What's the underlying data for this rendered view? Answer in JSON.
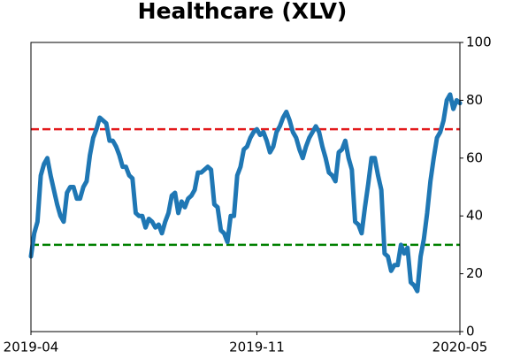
{
  "chart_data": {
    "type": "line",
    "title": "Healthcare (XLV)",
    "series": [
      {
        "color": "#1f77b4",
        "values": [
          26,
          34,
          38,
          54,
          58,
          60,
          54,
          49,
          44,
          40,
          38,
          48,
          50,
          50,
          46,
          46,
          50,
          52,
          61,
          67,
          70,
          74,
          73,
          72,
          66,
          66,
          64,
          61,
          57,
          57,
          54,
          53,
          41,
          40,
          40,
          36,
          39,
          38,
          36,
          37,
          34,
          38,
          41,
          47,
          48,
          41,
          45,
          43,
          46,
          47,
          49,
          55,
          55,
          56,
          57,
          56,
          44,
          43,
          35,
          34,
          31,
          40,
          40,
          54,
          57,
          63,
          64,
          67,
          69,
          70,
          68,
          69,
          66,
          62,
          64,
          69,
          71,
          74,
          76,
          73,
          69,
          67,
          63,
          60,
          64,
          67,
          69,
          71,
          69,
          64,
          60,
          55,
          54,
          52,
          62,
          63,
          66,
          60,
          56,
          38,
          37,
          34,
          43,
          51,
          60,
          60,
          54,
          49,
          27,
          26,
          21,
          23,
          23,
          30,
          27,
          29,
          17,
          16,
          14,
          26,
          32,
          41,
          52,
          60,
          67,
          69,
          73,
          80,
          82,
          77,
          80,
          79
        ]
      }
    ],
    "xlim": [
      0,
      131
    ],
    "xticks": [
      {
        "value": 0,
        "label": "2019-04"
      },
      {
        "value": 69,
        "label": "2019-11"
      },
      {
        "value": 131,
        "label": "2020-05"
      }
    ],
    "ylim": [
      0,
      100
    ],
    "yticks": [
      0,
      20,
      40,
      60,
      80,
      100
    ],
    "y_axis_side": "right",
    "reference_lines": [
      {
        "value": 70,
        "color": "#e31a1c"
      },
      {
        "value": 30,
        "color": "#008000"
      }
    ]
  }
}
